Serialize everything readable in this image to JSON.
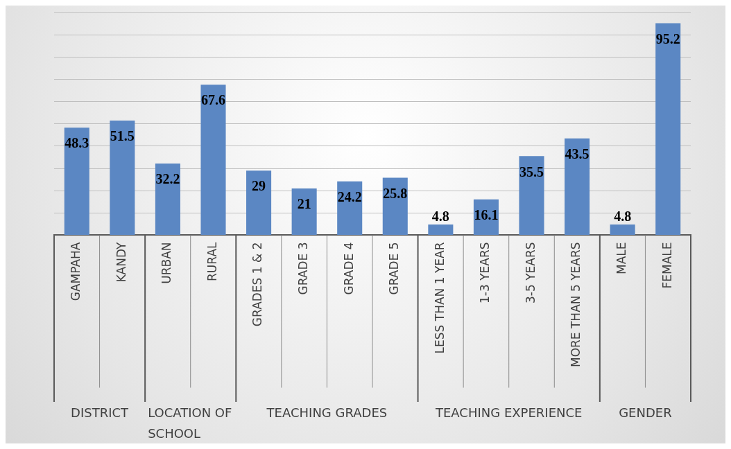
{
  "chart_data": {
    "type": "bar",
    "categories": [
      "GAMPAHA",
      "KANDY",
      "URBAN",
      "RURAL",
      "GRADES 1 & 2",
      "GRADE 3",
      "GRADE 4",
      "GRADE 5",
      "LESS THAN 1 YEAR",
      "1-3 YEARS",
      "3-5 YEARS",
      "MORE THAN 5 YEARS",
      "MALE",
      "FEMALE"
    ],
    "values": [
      48.3,
      51.5,
      32.2,
      67.6,
      29,
      21,
      24.2,
      25.8,
      4.8,
      16.1,
      35.5,
      43.5,
      4.8,
      95.2
    ],
    "color": "#5b87c3",
    "ylim": [
      0,
      100
    ],
    "yticks": [
      {
        "value": 0,
        "label": null
      },
      {
        "value": 10,
        "label": null
      },
      {
        "value": 20,
        "label": null
      },
      {
        "value": 30,
        "label": null
      },
      {
        "value": 40,
        "label": null
      },
      {
        "value": 50,
        "label": null
      },
      {
        "value": 60,
        "label": null
      },
      {
        "value": 70,
        "label": null
      },
      {
        "value": 80,
        "label": null
      },
      {
        "value": 90,
        "label": null
      },
      {
        "value": 100,
        "label": null
      }
    ],
    "tick_labels": "x",
    "grid": "y",
    "data_labels": true,
    "legend": false,
    "annotations": [
      "DISTRICT",
      "LOCATION OF SCHOOL",
      "TEACHING GRADES",
      "TEACHING EXPERIENCE",
      "GENDER"
    ]
  }
}
